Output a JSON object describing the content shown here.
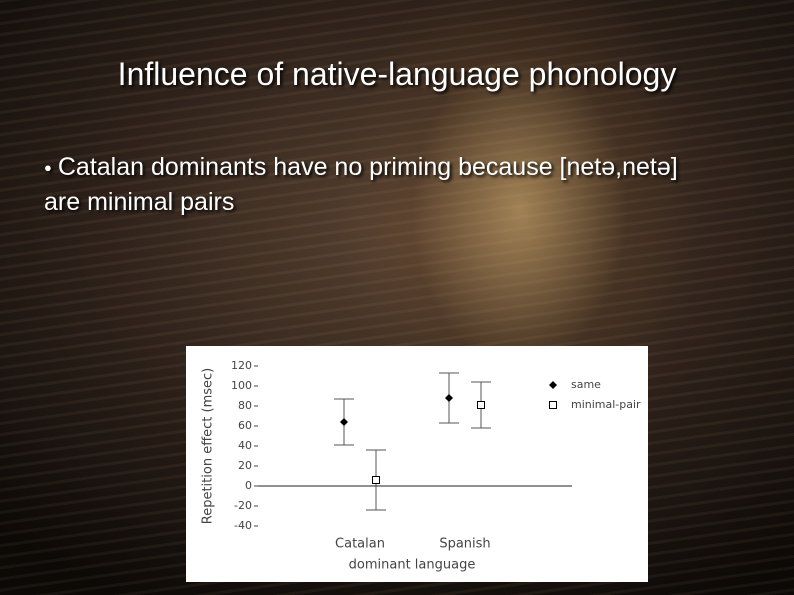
{
  "slide": {
    "title": "Influence of native-language phonology",
    "bullet": "Catalan dominants have no priming because [netə,netə] are minimal pairs"
  },
  "chart_data": {
    "type": "scatter",
    "categories": [
      "Catalan",
      "Spanish"
    ],
    "x_label": "dominant language",
    "y_label": "Repetition effect (msec)",
    "ylim": [
      -40,
      120
    ],
    "yticks": [
      -40,
      -20,
      0,
      20,
      40,
      60,
      80,
      100,
      120
    ],
    "series": [
      {
        "name": "same",
        "color": "#000000",
        "marker": "diamond",
        "values": [
          64,
          88
        ],
        "errors": [
          23,
          25
        ]
      },
      {
        "name": "minimal-pair",
        "color": "#000000",
        "marker": "square",
        "values": [
          6,
          81
        ],
        "errors": [
          30,
          23
        ]
      }
    ]
  }
}
